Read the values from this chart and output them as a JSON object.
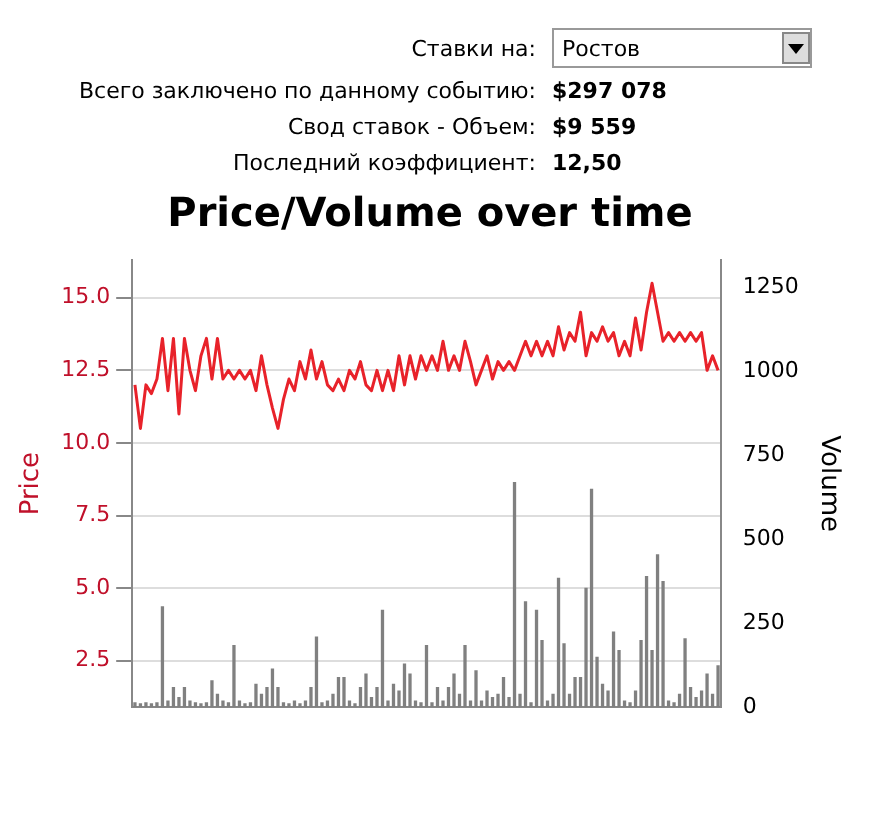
{
  "chart_data": {
    "type": "bar",
    "title": "Price/Volume over time",
    "ylabel": "Price",
    "y2label": "Volume",
    "annotations": [
      "Ставки на:",
      "Ростов",
      "Всего заключено по данному событию:",
      "$297 078",
      "Свод ставок - Объем:",
      "$9 559",
      "Последний коэффициент:",
      "12,50"
    ],
    "categories": [
      null,
      null,
      null,
      null,
      null,
      null,
      null,
      null,
      null,
      null,
      null,
      null,
      null,
      null,
      null,
      null,
      null,
      null,
      null,
      null,
      null,
      null,
      null,
      null,
      null,
      null,
      null,
      null,
      null,
      null,
      null,
      null,
      null,
      null,
      null,
      null,
      null,
      null,
      null,
      null,
      null,
      null,
      null,
      null,
      null,
      null,
      null,
      null,
      null,
      null,
      null,
      null,
      null,
      null,
      null,
      null,
      null,
      null,
      null,
      null,
      null,
      null,
      null,
      null,
      null,
      null,
      null,
      null,
      null,
      null,
      null,
      null,
      null,
      null,
      null,
      null,
      null,
      null,
      null,
      null,
      null,
      null,
      null,
      null,
      null,
      null,
      null,
      null,
      null,
      null,
      null,
      null,
      null,
      null,
      null,
      null,
      null,
      null,
      null,
      null,
      null,
      null,
      null,
      null,
      null,
      null,
      null
    ],
    "series": [
      {
        "type": "line",
        "color": "#e8222a",
        "values": [
          12.0,
          10.5,
          12.0,
          11.7,
          12.2,
          13.6,
          11.8,
          13.6,
          11.0,
          13.6,
          12.5,
          11.8,
          13.0,
          13.6,
          12.2,
          13.6,
          12.2,
          12.5,
          12.2,
          12.5,
          12.2,
          12.5,
          11.8,
          13.0,
          12.0,
          11.2,
          10.5,
          11.5,
          12.2,
          11.8,
          12.8,
          12.2,
          13.2,
          12.2,
          12.8,
          12.0,
          11.8,
          12.2,
          11.8,
          12.5,
          12.2,
          12.8,
          12.0,
          11.8,
          12.5,
          11.8,
          12.5,
          11.8,
          13.0,
          12.0,
          13.0,
          12.2,
          13.0,
          12.5,
          13.0,
          12.5,
          13.5,
          12.5,
          13.0,
          12.5,
          13.5,
          12.8,
          12.0,
          12.5,
          13.0,
          12.2,
          12.8,
          12.5,
          12.8,
          12.5,
          13.0,
          13.5,
          13.0,
          13.5,
          13.0,
          13.5,
          13.0,
          14.0,
          13.2,
          13.8,
          13.5,
          14.5,
          13.0,
          13.8,
          13.5,
          14.0,
          13.5,
          13.8,
          13.0,
          13.5,
          13.0,
          14.3,
          13.2,
          14.5,
          15.5,
          14.5,
          13.5,
          13.8,
          13.5,
          13.8,
          13.5,
          13.8,
          13.5,
          13.8,
          12.5,
          13.0,
          12.5
        ]
      },
      {
        "type": "bar",
        "axis": "y2",
        "color": "#808080",
        "values": [
          15,
          12,
          15,
          12,
          15,
          300,
          20,
          60,
          30,
          60,
          20,
          15,
          12,
          15,
          80,
          40,
          20,
          15,
          185,
          20,
          12,
          15,
          70,
          40,
          60,
          115,
          60,
          15,
          12,
          20,
          12,
          20,
          60,
          210,
          15,
          20,
          40,
          90,
          90,
          20,
          12,
          60,
          100,
          30,
          60,
          290,
          20,
          70,
          50,
          130,
          100,
          20,
          15,
          185,
          15,
          60,
          20,
          60,
          100,
          40,
          185,
          20,
          110,
          20,
          50,
          30,
          40,
          90,
          30,
          670,
          40,
          315,
          15,
          290,
          200,
          20,
          40,
          385,
          190,
          40,
          90,
          90,
          355,
          650,
          150,
          70,
          50,
          225,
          170,
          20,
          15,
          50,
          200,
          390,
          170,
          455,
          375,
          20,
          15,
          40,
          205,
          60,
          30,
          50,
          100,
          40,
          125
        ]
      }
    ],
    "ylim": [
      0.9,
      16.3
    ],
    "yticks": [
      {
        "value": 2.5,
        "label": "2.5"
      },
      {
        "value": 5,
        "label": "5.0"
      },
      {
        "value": 7.5,
        "label": "7.5"
      },
      {
        "value": 10,
        "label": "10.0"
      },
      {
        "value": 12.5,
        "label": "12.5"
      },
      {
        "value": 15,
        "label": "15.0"
      }
    ],
    "y2lim": [
      0,
      1330
    ],
    "y2ticks": [
      0,
      250,
      500,
      750,
      1000,
      1250
    ],
    "grid": "y",
    "legend": false,
    "marker": "none"
  }
}
